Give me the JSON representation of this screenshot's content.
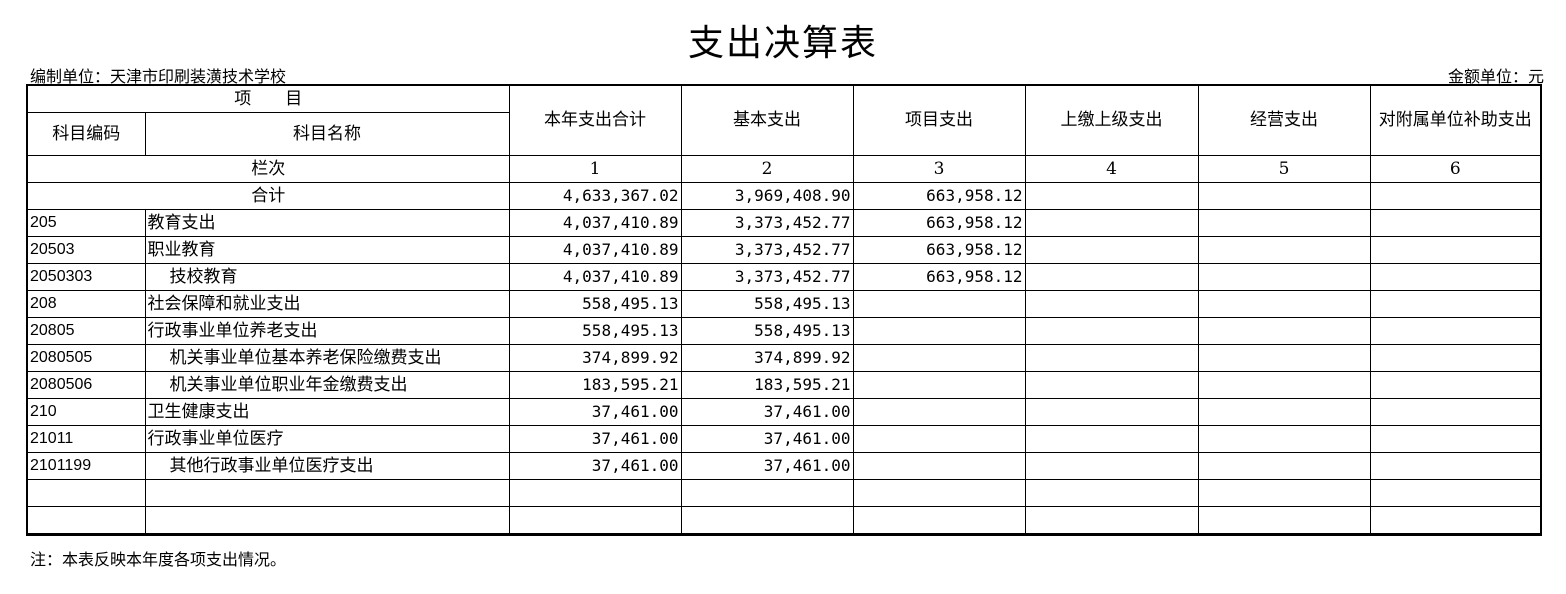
{
  "title": "支出决算表",
  "org_label": "编制单位：天津市印刷装潢技术学校",
  "unit_label": "金额单位：元",
  "header": {
    "project": "项　　目",
    "code": "科目编码",
    "name": "科目名称",
    "columns": [
      "本年支出合计",
      "基本支出",
      "项目支出",
      "上缴上级支出",
      "经营支出",
      "对附属单位补助支出"
    ],
    "column_index_label": "栏次",
    "column_numbers": [
      "1",
      "2",
      "3",
      "4",
      "5",
      "6"
    ]
  },
  "total": {
    "label": "合计",
    "values": [
      "4,633,367.02",
      "3,969,408.90",
      "663,958.12",
      "",
      "",
      ""
    ]
  },
  "rows": [
    {
      "code": "205",
      "name": "教育支出",
      "indent": false,
      "values": [
        "4,037,410.89",
        "3,373,452.77",
        "663,958.12",
        "",
        "",
        ""
      ]
    },
    {
      "code": "20503",
      "name": "职业教育",
      "indent": false,
      "values": [
        "4,037,410.89",
        "3,373,452.77",
        "663,958.12",
        "",
        "",
        ""
      ]
    },
    {
      "code": "2050303",
      "name": "技校教育",
      "indent": true,
      "values": [
        "4,037,410.89",
        "3,373,452.77",
        "663,958.12",
        "",
        "",
        ""
      ]
    },
    {
      "code": "208",
      "name": "社会保障和就业支出",
      "indent": false,
      "values": [
        "558,495.13",
        "558,495.13",
        "",
        "",
        "",
        ""
      ]
    },
    {
      "code": "20805",
      "name": "行政事业单位养老支出",
      "indent": false,
      "values": [
        "558,495.13",
        "558,495.13",
        "",
        "",
        "",
        ""
      ]
    },
    {
      "code": "2080505",
      "name": "机关事业单位基本养老保险缴费支出",
      "indent": true,
      "values": [
        "374,899.92",
        "374,899.92",
        "",
        "",
        "",
        ""
      ]
    },
    {
      "code": "2080506",
      "name": "机关事业单位职业年金缴费支出",
      "indent": true,
      "values": [
        "183,595.21",
        "183,595.21",
        "",
        "",
        "",
        ""
      ]
    },
    {
      "code": "210",
      "name": "卫生健康支出",
      "indent": false,
      "values": [
        "37,461.00",
        "37,461.00",
        "",
        "",
        "",
        ""
      ]
    },
    {
      "code": "21011",
      "name": "行政事业单位医疗",
      "indent": false,
      "values": [
        "37,461.00",
        "37,461.00",
        "",
        "",
        "",
        ""
      ]
    },
    {
      "code": "2101199",
      "name": "其他行政事业单位医疗支出",
      "indent": true,
      "values": [
        "37,461.00",
        "37,461.00",
        "",
        "",
        "",
        ""
      ]
    },
    {
      "code": "",
      "name": "",
      "indent": false,
      "values": [
        "",
        "",
        "",
        "",
        "",
        ""
      ]
    },
    {
      "code": "",
      "name": "",
      "indent": false,
      "values": [
        "",
        "",
        "",
        "",
        "",
        ""
      ]
    }
  ],
  "note": "注：本表反映本年度各项支出情况。"
}
